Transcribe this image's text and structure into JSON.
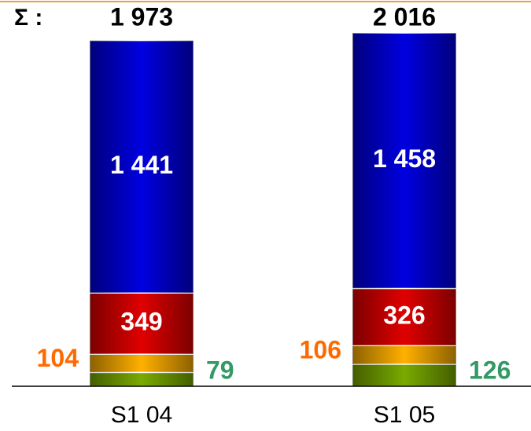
{
  "chart_data": {
    "type": "stacked_bar",
    "sum_label": "Σ :",
    "categories": [
      "S1 04",
      "S1 05"
    ],
    "series": [
      {
        "color": "#7aaa00",
        "label_color": "#339966",
        "values": [
          79,
          126
        ]
      },
      {
        "color": "#ffb000",
        "label_color": "#ff6a00",
        "values": [
          104,
          106
        ]
      },
      {
        "color": "#e00000",
        "label_color": "#ffffff",
        "values": [
          349,
          326
        ]
      },
      {
        "color": "#0000e0",
        "label_color": "#ffffff",
        "values": [
          1441,
          1458
        ],
        "value_labels": [
          "1 441",
          "1 458"
        ]
      }
    ],
    "totals": [
      1973,
      2016
    ],
    "total_labels": [
      "1 973",
      "2 016"
    ]
  }
}
